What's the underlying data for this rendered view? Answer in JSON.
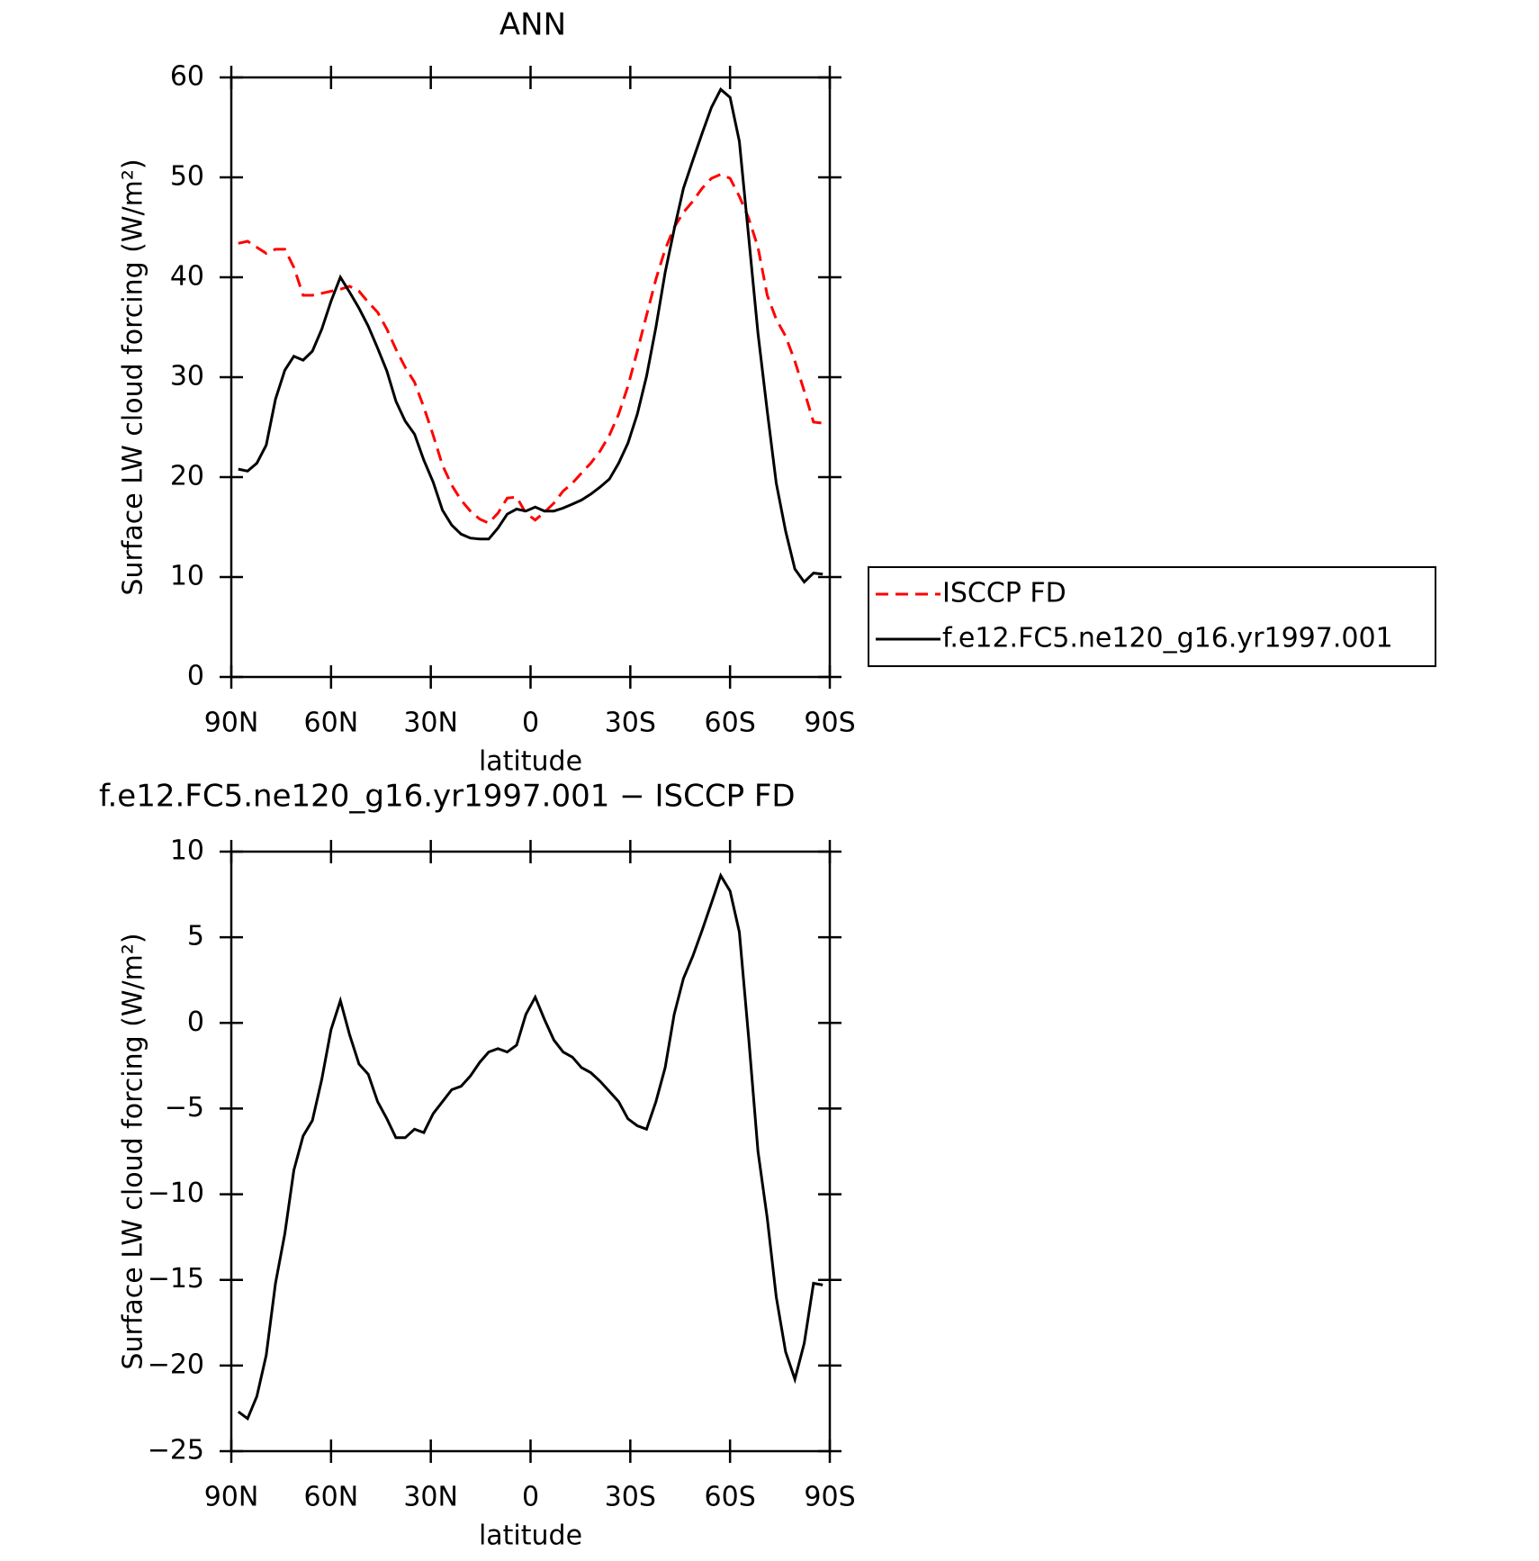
{
  "chart_data": [
    {
      "type": "line",
      "title": "ANN",
      "xlabel": "latitude",
      "ylabel": "Surface LW cloud forcing (W/m²)",
      "x": [
        87.9,
        85.1,
        82.3,
        79.5,
        76.7,
        73.9,
        71.2,
        68.4,
        65.6,
        62.8,
        60.0,
        57.2,
        54.4,
        51.6,
        48.8,
        46.0,
        43.2,
        40.5,
        37.7,
        34.9,
        32.1,
        29.3,
        26.5,
        23.7,
        20.9,
        18.1,
        15.3,
        12.6,
        9.8,
        7.0,
        4.2,
        1.4,
        -1.4,
        -4.2,
        -7.0,
        -9.8,
        -12.6,
        -15.3,
        -18.1,
        -20.9,
        -23.7,
        -26.5,
        -29.3,
        -32.1,
        -34.9,
        -37.7,
        -40.5,
        -43.2,
        -46.0,
        -48.8,
        -51.6,
        -54.4,
        -57.2,
        -60.0,
        -62.8,
        -65.6,
        -68.4,
        -71.2,
        -73.9,
        -76.7,
        -79.5,
        -82.3,
        -85.1,
        -87.9
      ],
      "xlim": [
        90,
        -90
      ],
      "xticks": [
        {
          "value": 90,
          "label": "90N"
        },
        {
          "value": 60,
          "label": "60N"
        },
        {
          "value": 30,
          "label": "30N"
        },
        0,
        {
          "value": -30,
          "label": "30S"
        },
        {
          "value": -60,
          "label": "60S"
        },
        {
          "value": -90,
          "label": "90S"
        }
      ],
      "ylim": [
        0,
        60
      ],
      "yticks": [
        0,
        10,
        20,
        30,
        40,
        50,
        60
      ],
      "legend": "right",
      "series": [
        {
          "name": "ISCCP FD",
          "color": "#ff0000",
          "dash": "dashed",
          "values": [
            43.4,
            43.6,
            43.0,
            42.4,
            42.8,
            42.8,
            41.0,
            38.2,
            38.2,
            38.4,
            38.6,
            38.8,
            39.1,
            38.6,
            37.5,
            36.5,
            34.8,
            32.8,
            31.0,
            29.5,
            27.0,
            24.2,
            21.2,
            19.2,
            17.7,
            16.6,
            15.8,
            15.4,
            16.4,
            17.9,
            18.0,
            16.4,
            15.7,
            16.5,
            17.4,
            18.6,
            19.4,
            20.4,
            21.4,
            22.6,
            24.2,
            26.3,
            29.1,
            32.6,
            36.2,
            39.8,
            42.8,
            45.0,
            46.5,
            47.6,
            48.9,
            49.9,
            50.3,
            49.9,
            48.1,
            45.9,
            43.0,
            38.2,
            35.8,
            34.1,
            31.6,
            28.6,
            25.5,
            25.4
          ]
        },
        {
          "name": "f.e12.FC5.ne120_g16.yr1997.001",
          "color": "#000000",
          "dash": "solid",
          "values": [
            20.8,
            20.6,
            21.4,
            23.2,
            27.8,
            30.7,
            32.1,
            31.7,
            32.6,
            34.8,
            37.6,
            40.0,
            38.5,
            36.9,
            35.1,
            32.9,
            30.6,
            27.6,
            25.6,
            24.3,
            21.7,
            19.5,
            16.7,
            15.2,
            14.3,
            13.9,
            13.8,
            13.8,
            14.9,
            16.3,
            16.8,
            16.6,
            17.0,
            16.6,
            16.6,
            16.9,
            17.3,
            17.7,
            18.3,
            19.0,
            19.8,
            21.4,
            23.4,
            26.3,
            30.1,
            35.0,
            40.5,
            44.8,
            48.9,
            51.7,
            54.4,
            57.0,
            58.8,
            58.0,
            53.6,
            44.0,
            34.4,
            26.6,
            19.4,
            14.6,
            10.8,
            9.5,
            10.4,
            10.3
          ]
        }
      ]
    },
    {
      "type": "line",
      "title": "f.e12.FC5.ne120_g16.yr1997.001 − ISCCP FD",
      "xlabel": "latitude",
      "ylabel": "Surface LW cloud forcing (W/m²)",
      "x": [
        87.9,
        85.1,
        82.3,
        79.5,
        76.7,
        73.9,
        71.2,
        68.4,
        65.6,
        62.8,
        60.0,
        57.2,
        54.4,
        51.6,
        48.8,
        46.0,
        43.2,
        40.5,
        37.7,
        34.9,
        32.1,
        29.3,
        26.5,
        23.7,
        20.9,
        18.1,
        15.3,
        12.6,
        9.8,
        7.0,
        4.2,
        1.4,
        -1.4,
        -4.2,
        -7.0,
        -9.8,
        -12.6,
        -15.3,
        -18.1,
        -20.9,
        -23.7,
        -26.5,
        -29.3,
        -32.1,
        -34.9,
        -37.7,
        -40.5,
        -43.2,
        -46.0,
        -48.8,
        -51.6,
        -54.4,
        -57.2,
        -60.0,
        -62.8,
        -65.6,
        -68.4,
        -71.2,
        -73.9,
        -76.7,
        -79.5,
        -82.3,
        -85.1,
        -87.9
      ],
      "xlim": [
        90,
        -90
      ],
      "xticks": [
        {
          "value": 90,
          "label": "90N"
        },
        {
          "value": 60,
          "label": "60N"
        },
        {
          "value": 30,
          "label": "30N"
        },
        0,
        {
          "value": -30,
          "label": "30S"
        },
        {
          "value": -60,
          "label": "60S"
        },
        {
          "value": -90,
          "label": "90S"
        }
      ],
      "ylim": [
        -25,
        10
      ],
      "yticks": [
        {
          "value": -25,
          "label": "−25"
        },
        {
          "value": -20,
          "label": "−20"
        },
        {
          "value": -15,
          "label": "−15"
        },
        {
          "value": -10,
          "label": "−10"
        },
        {
          "value": -5,
          "label": "−5"
        },
        0,
        5,
        10
      ],
      "series": [
        {
          "color": "#000000",
          "dash": "solid",
          "values": [
            -22.7,
            -23.1,
            -21.8,
            -19.4,
            -15.2,
            -12.3,
            -8.6,
            -6.6,
            -5.7,
            -3.3,
            -0.4,
            1.3,
            -0.7,
            -2.4,
            -3.0,
            -4.6,
            -5.6,
            -6.7,
            -6.7,
            -6.2,
            -6.4,
            -5.3,
            -4.6,
            -3.9,
            -3.7,
            -3.1,
            -2.3,
            -1.7,
            -1.5,
            -1.7,
            -1.3,
            0.5,
            1.5,
            0.2,
            -1.0,
            -1.7,
            -2.0,
            -2.6,
            -2.9,
            -3.4,
            -4.0,
            -4.6,
            -5.6,
            -6.0,
            -6.2,
            -4.6,
            -2.6,
            0.5,
            2.6,
            3.9,
            5.4,
            7.0,
            8.6,
            7.7,
            5.3,
            -0.9,
            -7.5,
            -11.4,
            -16.0,
            -19.2,
            -20.8,
            -18.7,
            -15.2,
            -15.3
          ]
        }
      ]
    }
  ]
}
